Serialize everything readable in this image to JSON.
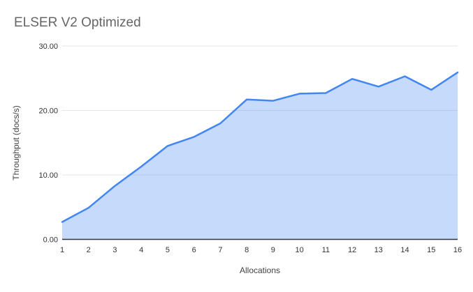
{
  "title": "ELSER V2 Optimized",
  "colors": {
    "line": "#4285f4",
    "fill": "rgba(66,133,244,0.3)",
    "grid": "#e6e6e6",
    "axis_line": "#333333",
    "tick_text": "#333333",
    "axis_title_text": "#424242",
    "title_text": "#666666",
    "background": "#ffffff"
  },
  "chart_data": {
    "type": "area",
    "title": "ELSER V2 Optimized",
    "xlabel": "Allocations",
    "ylabel": "Throughput (docs/s)",
    "x": [
      1,
      2,
      3,
      4,
      5,
      6,
      7,
      8,
      9,
      10,
      11,
      12,
      13,
      14,
      15,
      16
    ],
    "series": [
      {
        "name": "Throughput (docs/s)",
        "values": [
          2.7,
          4.9,
          8.3,
          11.3,
          14.5,
          15.9,
          18.0,
          21.7,
          21.5,
          22.6,
          22.7,
          24.9,
          23.7,
          25.3,
          23.2,
          25.9
        ]
      }
    ],
    "ylim": [
      0,
      30
    ],
    "yticks": [
      0,
      10,
      20,
      30
    ],
    "ytick_labels": [
      "0.00",
      "10.00",
      "20.00",
      "30.00"
    ],
    "xtick_labels": [
      "1",
      "2",
      "3",
      "4",
      "5",
      "6",
      "7",
      "8",
      "9",
      "10",
      "11",
      "12",
      "13",
      "14",
      "15",
      "16"
    ],
    "grid": "horizontal",
    "legend": "none"
  }
}
